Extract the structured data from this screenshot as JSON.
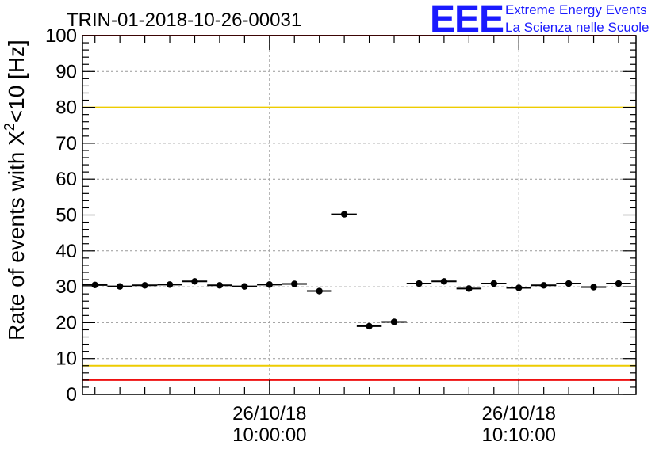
{
  "chart_data": {
    "type": "scatter",
    "title": "TRIN-01-2018-10-26-00031",
    "ylabel_prefix": "Rate of events with X",
    "ylabel_sup": "2",
    "ylabel_suffix": "<10 [Hz]",
    "ylim": [
      0,
      100
    ],
    "yticks": [
      "0",
      "10",
      "20",
      "30",
      "40",
      "50",
      "60",
      "70",
      "80",
      "90",
      "100"
    ],
    "xticks": [
      {
        "date": "26/10/18",
        "time": "10:00:00",
        "minutes": 0
      },
      {
        "date": "26/10/18",
        "time": "10:10:00",
        "minutes": 10
      }
    ],
    "x_unit": "minutes after 26/10/18 10:00:00",
    "xlim": [
      -7.5,
      14.7
    ],
    "grid": true,
    "points": [
      {
        "x": -7.0,
        "y": 30.5
      },
      {
        "x": -6.0,
        "y": 30.1
      },
      {
        "x": -5.0,
        "y": 30.4
      },
      {
        "x": -4.0,
        "y": 30.6
      },
      {
        "x": -3.0,
        "y": 31.5
      },
      {
        "x": -2.0,
        "y": 30.4
      },
      {
        "x": -1.0,
        "y": 30.1
      },
      {
        "x": 0.0,
        "y": 30.6
      },
      {
        "x": 1.0,
        "y": 30.8
      },
      {
        "x": 2.0,
        "y": 28.8
      },
      {
        "x": 3.0,
        "y": 50.2
      },
      {
        "x": 4.0,
        "y": 19.0
      },
      {
        "x": 5.0,
        "y": 20.2
      },
      {
        "x": 6.0,
        "y": 30.9
      },
      {
        "x": 7.0,
        "y": 31.5
      },
      {
        "x": 8.0,
        "y": 29.5
      },
      {
        "x": 9.0,
        "y": 30.9
      },
      {
        "x": 10.0,
        "y": 29.7
      },
      {
        "x": 11.0,
        "y": 30.4
      },
      {
        "x": 12.0,
        "y": 30.9
      },
      {
        "x": 13.0,
        "y": 29.9
      },
      {
        "x": 14.0,
        "y": 30.9
      }
    ],
    "bin_width_minutes": 1.0,
    "reference_lines": [
      {
        "y": 100,
        "color": "#ee1111"
      },
      {
        "y": 80,
        "color": "#eecc00"
      },
      {
        "y": 8,
        "color": "#eecc00"
      },
      {
        "y": 4,
        "color": "#ee1111"
      }
    ]
  },
  "logo": {
    "mark": "EEE",
    "line1": "Extreme Energy Events",
    "line2": "La Scienza nelle Scuole",
    "color": "#1a1aff"
  }
}
